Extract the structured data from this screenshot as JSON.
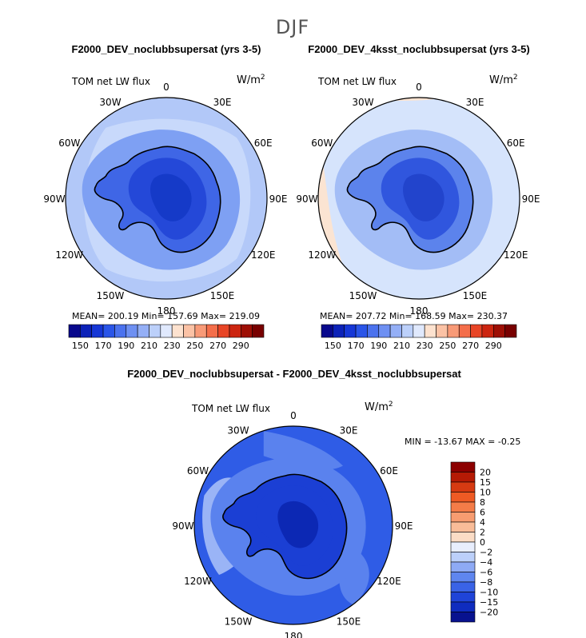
{
  "page": {
    "season_title": "DJF",
    "diff_title": "F2000_DEV_noclubbsupersat - F2000_DEV_4ksst_noclubbsupersat"
  },
  "chart_data": [
    {
      "type": "heatmap",
      "projection": "south-polar-stereographic",
      "title": "F2000_DEV_noclubbsupersat (yrs 3-5)",
      "variable": "TOM net LW flux",
      "units": "W/m",
      "units_exp": "2",
      "lon_labels": [
        "0",
        "30E",
        "60E",
        "90E",
        "120E",
        "150E",
        "180",
        "150W",
        "120W",
        "90W",
        "60W",
        "30W"
      ],
      "stats": {
        "mean": "200.19",
        "min": "157.69",
        "max": "219.09"
      },
      "stats_text": "MEAN= 200.19   Min= 157.69   Max= 219.09",
      "colorbar": {
        "levels": [
          "150",
          "170",
          "190",
          "210",
          "230",
          "250",
          "270",
          "290"
        ],
        "colors": [
          "#08088c",
          "#0c22b8",
          "#1637d6",
          "#2a55e8",
          "#4b72ee",
          "#6e90f2",
          "#94aff6",
          "#bcd0fa",
          "#e0e9fd",
          "#fde2cf",
          "#fbc2a5",
          "#f89a77",
          "#f46e4a",
          "#e84526",
          "#cc2510",
          "#9e0f05",
          "#780000"
        ]
      },
      "background_fill": "#b2c8f8",
      "contour_fills": {
        "outer": "#c8d9fb",
        "ring": "#7ea0f3",
        "interior": "#3f66e6",
        "core": "#2448d8",
        "deep": "#153ac8"
      }
    },
    {
      "type": "heatmap",
      "projection": "south-polar-stereographic",
      "title": "F2000_DEV_4ksst_noclubbsupersat (yrs 3-5)",
      "variable": "TOM net LW flux",
      "units": "W/m",
      "units_exp": "2",
      "lon_labels": [
        "0",
        "30E",
        "60E",
        "90E",
        "120E",
        "150E",
        "180",
        "150W",
        "120W",
        "90W",
        "60W",
        "30W"
      ],
      "stats": {
        "mean": "207.72",
        "min": "168.59",
        "max": "230.37"
      },
      "stats_text": "MEAN= 207.72   Min= 168.59   Max= 230.37",
      "colorbar": {
        "levels": [
          "150",
          "170",
          "190",
          "210",
          "230",
          "250",
          "270",
          "290"
        ],
        "colors": [
          "#08088c",
          "#0c22b8",
          "#1637d6",
          "#2a55e8",
          "#4b72ee",
          "#6e90f2",
          "#94aff6",
          "#bcd0fa",
          "#e0e9fd",
          "#fde2cf",
          "#fbc2a5",
          "#f89a77",
          "#f46e4a",
          "#e84526",
          "#cc2510",
          "#9e0f05",
          "#780000"
        ]
      },
      "background_fill": "#d6e4fc",
      "contour_fills": {
        "outer": "#fbe4d2",
        "ring": "#a3bdf6",
        "interior": "#5c83ec",
        "core": "#3056de",
        "deep": "#2244cc"
      }
    },
    {
      "type": "heatmap",
      "projection": "south-polar-stereographic",
      "title": "F2000_DEV_noclubbsupersat - F2000_DEV_4ksst_noclubbsupersat",
      "variable": "TOM net LW flux",
      "units": "W/m",
      "units_exp": "2",
      "lon_labels": [
        "0",
        "30E",
        "60E",
        "90E",
        "120E",
        "150E",
        "180",
        "150W",
        "120W",
        "90W",
        "60W",
        "30W"
      ],
      "stats": {
        "min": "-13.67",
        "max": "-0.25"
      },
      "stats_text": "MIN = -13.67 MAX =  -0.25",
      "colorbar": {
        "levels": [
          "20",
          "15",
          "10",
          "8",
          "6",
          "4",
          "2",
          "0",
          "−2",
          "−4",
          "−6",
          "−8",
          "−10",
          "−15",
          "−20"
        ],
        "colors": [
          "#8c0000",
          "#b51a05",
          "#d63a12",
          "#ee5a24",
          "#f47c48",
          "#f79c70",
          "#f9bc98",
          "#fbdcc5",
          "#e8eefd",
          "#bcd0fa",
          "#8eaaf5",
          "#5f86ef",
          "#3a63e6",
          "#1f44d8",
          "#0f2cbf",
          "#08128f"
        ]
      },
      "background_fill": "#2f5ce6",
      "contour_fills": {
        "ring": "#5a82ee",
        "light": "#9ab4f6",
        "interior": "#1b3fd4",
        "deep": "#0c28b4"
      }
    }
  ]
}
